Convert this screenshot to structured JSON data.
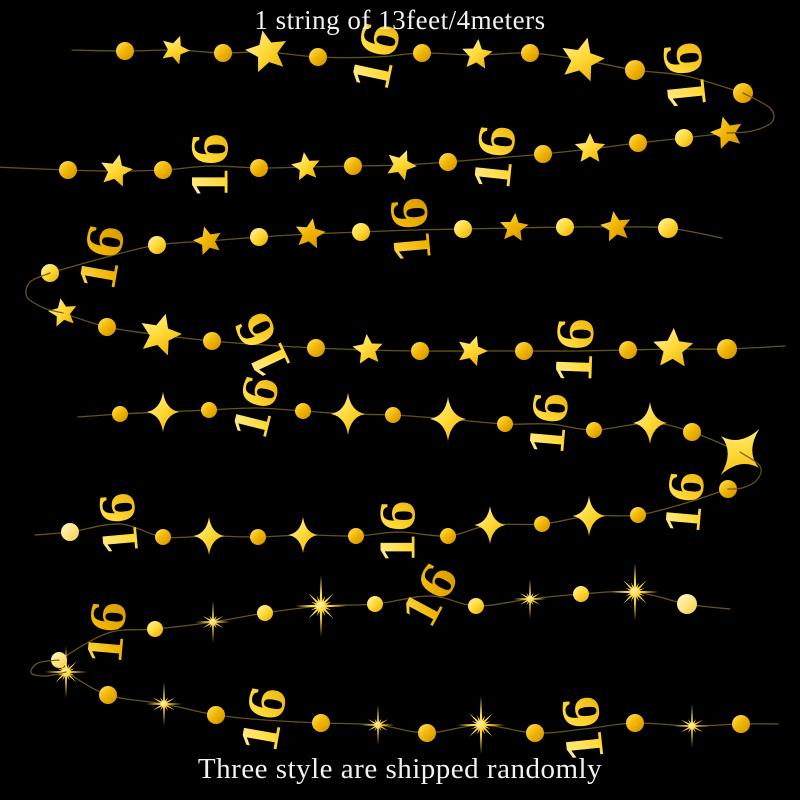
{
  "captions": {
    "top": "1 string of 13feet/4meters",
    "bottom": "Three style are shipped randomly"
  },
  "garland": {
    "label": "16",
    "colors": {
      "gold_bright": [
        "#fff3ae",
        "#ffd937",
        "#e8a800"
      ],
      "gold_deep": [
        "#ffe366",
        "#f0b400",
        "#cf9000"
      ],
      "gold_pale": [
        "#fff8cf",
        "#ffe68a",
        "#f7c83d"
      ],
      "string": "#6f5b16",
      "background": "#000000",
      "text": "#f2f2f2"
    },
    "strands": [
      {
        "style": "star",
        "items": [
          [
            "n",
            72,
            50
          ],
          [
            "c",
            125,
            51,
            9
          ],
          [
            "s",
            175,
            50,
            15,
            20
          ],
          [
            "c",
            223,
            53,
            9
          ],
          [
            "s",
            267,
            52,
            22,
            -12
          ],
          [
            "c",
            318,
            57,
            9
          ],
          [
            "x",
            377,
            57,
            50,
            -78
          ],
          [
            "c",
            422,
            53,
            9
          ],
          [
            "s",
            477,
            55,
            16,
            5
          ],
          [
            "c",
            530,
            53,
            9
          ],
          [
            "s",
            582,
            60,
            23,
            14
          ],
          [
            "c",
            635,
            70,
            10
          ],
          [
            "x",
            686,
            76,
            50,
            -96
          ],
          [
            "c",
            743,
            93,
            10
          ]
        ]
      },
      {
        "style": "star",
        "items": [
          [
            "n",
            -6,
            167
          ],
          [
            "c",
            68,
            170,
            9
          ],
          [
            "s",
            116,
            171,
            17,
            12
          ],
          [
            "c",
            163,
            170,
            9
          ],
          [
            "x",
            211,
            166,
            48,
            -90
          ],
          [
            "c",
            259,
            168,
            9
          ],
          [
            "s",
            306,
            167,
            15,
            -8
          ],
          [
            "c",
            353,
            166,
            9
          ],
          [
            "s",
            401,
            165,
            16,
            22
          ],
          [
            "c",
            448,
            162,
            9
          ],
          [
            "x",
            496,
            158,
            48,
            -84
          ],
          [
            "c",
            543,
            154,
            9
          ],
          [
            "s",
            590,
            149,
            16,
            0
          ],
          [
            "c",
            638,
            143,
            9
          ],
          [
            "c",
            684,
            138,
            9
          ],
          [
            "s",
            727,
            133,
            17,
            -15
          ]
        ]
      },
      {
        "style": "star",
        "items": [
          [
            "c",
            50,
            273,
            9
          ],
          [
            "x",
            103,
            258,
            48,
            -80
          ],
          [
            "c",
            157,
            245,
            9
          ],
          [
            "s",
            208,
            241,
            15,
            -15
          ],
          [
            "c",
            259,
            237,
            9
          ],
          [
            "s",
            310,
            234,
            16,
            10
          ],
          [
            "c",
            361,
            232,
            9
          ],
          [
            "x",
            412,
            230,
            48,
            -95
          ],
          [
            "c",
            463,
            229,
            9
          ],
          [
            "s",
            514,
            228,
            15,
            5
          ],
          [
            "c",
            565,
            227,
            9
          ],
          [
            "s",
            616,
            227,
            16,
            -10
          ],
          [
            "c",
            668,
            228,
            10
          ],
          [
            "n",
            722,
            238
          ]
        ]
      },
      {
        "style": "star",
        "items": [
          [
            "s",
            63,
            313,
            15,
            -10
          ],
          [
            "c",
            107,
            327,
            9
          ],
          [
            "s",
            160,
            335,
            22,
            15
          ],
          [
            "c",
            212,
            341,
            9
          ],
          [
            "x",
            264,
            345,
            48,
            -115
          ],
          [
            "c",
            316,
            348,
            9
          ],
          [
            "s",
            368,
            350,
            16,
            -5
          ],
          [
            "c",
            420,
            351,
            9
          ],
          [
            "s",
            472,
            351,
            16,
            18
          ],
          [
            "c",
            524,
            351,
            9
          ],
          [
            "x",
            576,
            351,
            48,
            -88
          ],
          [
            "c",
            628,
            350,
            9
          ],
          [
            "s",
            673,
            349,
            21,
            2
          ],
          [
            "c",
            727,
            349,
            10
          ],
          [
            "n",
            785,
            346
          ]
        ]
      },
      {
        "style": "sparkle",
        "items": [
          [
            "n",
            78,
            417
          ],
          [
            "c",
            120,
            414,
            8
          ],
          [
            "p",
            163,
            412,
            20
          ],
          [
            "c",
            209,
            410,
            8
          ],
          [
            "x",
            257,
            408,
            46,
            -76
          ],
          [
            "c",
            303,
            411,
            8
          ],
          [
            "p",
            348,
            414,
            21
          ],
          [
            "c",
            393,
            415,
            8
          ],
          [
            "p",
            448,
            419,
            22
          ],
          [
            "c",
            505,
            424,
            8
          ],
          [
            "x",
            550,
            424,
            46,
            -85
          ],
          [
            "c",
            594,
            430,
            8
          ],
          [
            "p",
            650,
            423,
            21
          ],
          [
            "c",
            692,
            432,
            9
          ],
          [
            "P",
            740,
            452,
            30,
            40
          ]
        ]
      },
      {
        "style": "sparkle",
        "items": [
          [
            "n",
            35,
            535
          ],
          [
            "c",
            70,
            532,
            9,
            0,
            "p"
          ],
          [
            "x",
            120,
            524,
            46,
            -95
          ],
          [
            "c",
            163,
            537,
            8
          ],
          [
            "p",
            209,
            536,
            19
          ],
          [
            "c",
            258,
            537,
            8
          ],
          [
            "p",
            303,
            535,
            18
          ],
          [
            "c",
            356,
            536,
            8
          ],
          [
            "x",
            399,
            532,
            46,
            -90
          ],
          [
            "c",
            448,
            536,
            8
          ],
          [
            "p",
            490,
            525,
            19
          ],
          [
            "c",
            542,
            524,
            8
          ],
          [
            "p",
            589,
            516,
            20
          ],
          [
            "c",
            638,
            515,
            8
          ],
          [
            "x",
            686,
            503,
            46,
            -85
          ],
          [
            "c",
            728,
            489,
            9
          ]
        ]
      },
      {
        "style": "burst",
        "items": [
          [
            "c",
            59,
            660,
            8,
            0,
            "p"
          ],
          [
            "x",
            108,
            633,
            46,
            -85
          ],
          [
            "c",
            155,
            629,
            8
          ],
          [
            "b",
            213,
            622,
            21
          ],
          [
            "c",
            265,
            613,
            8
          ],
          [
            "B",
            321,
            606,
            31
          ],
          [
            "c",
            375,
            604,
            8
          ],
          [
            "x",
            431,
            596,
            46,
            -62
          ],
          [
            "c",
            476,
            606,
            8
          ],
          [
            "b",
            530,
            599,
            20
          ],
          [
            "c",
            581,
            594,
            8
          ],
          [
            "B",
            635,
            592,
            29
          ],
          [
            "c",
            687,
            604,
            10,
            0,
            "p"
          ],
          [
            "n",
            730,
            609
          ]
        ]
      },
      {
        "style": "burst",
        "items": [
          [
            "B",
            66,
            672,
            26
          ],
          [
            "c",
            108,
            695,
            9
          ],
          [
            "b",
            164,
            704,
            22
          ],
          [
            "c",
            216,
            715,
            9
          ],
          [
            "x",
            265,
            720,
            48,
            -80
          ],
          [
            "c",
            321,
            723,
            9
          ],
          [
            "b",
            378,
            725,
            20
          ],
          [
            "c",
            427,
            733,
            9
          ],
          [
            "B",
            481,
            725,
            29
          ],
          [
            "c",
            535,
            733,
            9
          ],
          [
            "x",
            584,
            729,
            48,
            -96
          ],
          [
            "c",
            635,
            723,
            9
          ],
          [
            "b",
            692,
            726,
            22
          ],
          [
            "c",
            741,
            724,
            9
          ],
          [
            "n",
            778,
            724
          ]
        ]
      },
      {
        "style": "connector",
        "items": [
          [
            "n",
            743,
            93
          ],
          [
            "n",
            770,
            108
          ],
          [
            "n",
            772,
            122
          ],
          [
            "n",
            752,
            131
          ],
          [
            "n",
            727,
            133
          ]
        ]
      },
      {
        "style": "connector",
        "items": [
          [
            "n",
            50,
            273
          ],
          [
            "n",
            30,
            282
          ],
          [
            "n",
            27,
            297
          ],
          [
            "n",
            44,
            308
          ],
          [
            "n",
            63,
            313
          ]
        ]
      },
      {
        "style": "connector",
        "items": [
          [
            "n",
            740,
            452
          ],
          [
            "n",
            760,
            466
          ],
          [
            "n",
            757,
            480
          ],
          [
            "n",
            742,
            488
          ],
          [
            "n",
            728,
            489
          ]
        ]
      },
      {
        "style": "connector",
        "items": [
          [
            "n",
            59,
            660
          ],
          [
            "n",
            38,
            663
          ],
          [
            "n",
            31,
            673
          ],
          [
            "n",
            46,
            676
          ],
          [
            "n",
            66,
            672
          ]
        ]
      }
    ]
  }
}
